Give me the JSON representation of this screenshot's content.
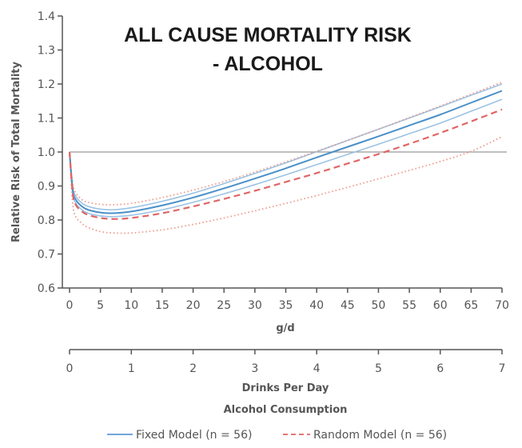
{
  "chart_data": {
    "type": "line",
    "title": "ALL CAUSE MORTALITY RISK",
    "subtitle": "- ALCOHOL",
    "xlabel": "g/d",
    "x2label": "Drinks Per Day",
    "x_caption": "Alcohol Consumption",
    "ylabel": "Relative Risk of Total Mortality",
    "xlim": [
      0,
      70
    ],
    "ylim": [
      0.6,
      1.4
    ],
    "x_ticks": [
      0,
      5,
      10,
      15,
      20,
      25,
      30,
      35,
      40,
      45,
      50,
      55,
      60,
      65,
      70
    ],
    "x2_ticks": [
      0,
      1,
      2,
      3,
      4,
      5,
      6,
      7
    ],
    "y_ticks": [
      "0.6",
      "0.7",
      "0.8",
      "0.9",
      "1.0",
      "1.1",
      "1.2",
      "1.3",
      "1.4"
    ],
    "reference_line": 1.0,
    "legend": {
      "placement": "bottom",
      "entries": [
        {
          "label": "Fixed Model (n = 56)",
          "style": "solid",
          "color": "#5b9bd5"
        },
        {
          "label": "Random Model (n = 56)",
          "style": "dashed",
          "color": "#e06666"
        }
      ]
    },
    "x": [
      0,
      0.5,
      1,
      2,
      3,
      5,
      7,
      10,
      15,
      20,
      25,
      30,
      35,
      40,
      45,
      50,
      55,
      60,
      65,
      70
    ],
    "series": [
      {
        "name": "Fixed Model",
        "role": "estimate",
        "color": "#4a90c8",
        "style": "solid",
        "values": [
          1.0,
          0.89,
          0.86,
          0.84,
          0.83,
          0.822,
          0.82,
          0.825,
          0.843,
          0.866,
          0.893,
          0.922,
          0.952,
          0.984,
          1.015,
          1.046,
          1.078,
          1.11,
          1.145,
          1.18
        ]
      },
      {
        "name": "Fixed Model upper CI",
        "role": "ci",
        "color": "#9cc3e4",
        "style": "solid",
        "values": [
          1.0,
          0.9,
          0.87,
          0.85,
          0.84,
          0.832,
          0.83,
          0.836,
          0.855,
          0.879,
          0.907,
          0.937,
          0.968,
          1.001,
          1.034,
          1.067,
          1.1,
          1.133,
          1.167,
          1.2
        ]
      },
      {
        "name": "Fixed Model lower CI",
        "role": "ci",
        "color": "#9cc3e4",
        "style": "solid",
        "values": [
          1.0,
          0.88,
          0.85,
          0.83,
          0.82,
          0.812,
          0.81,
          0.814,
          0.83,
          0.852,
          0.877,
          0.904,
          0.933,
          0.963,
          0.993,
          1.023,
          1.054,
          1.085,
          1.12,
          1.155
        ]
      },
      {
        "name": "Random Model",
        "role": "estimate",
        "color": "#e06666",
        "style": "dashed",
        "values": [
          1.0,
          0.88,
          0.845,
          0.825,
          0.815,
          0.806,
          0.803,
          0.806,
          0.82,
          0.84,
          0.862,
          0.886,
          0.912,
          0.938,
          0.966,
          0.994,
          1.024,
          1.056,
          1.09,
          1.125
        ]
      },
      {
        "name": "Random Model upper CI",
        "role": "ci",
        "color": "#ec9a8a",
        "style": "dotted",
        "values": [
          1.0,
          0.91,
          0.88,
          0.86,
          0.852,
          0.846,
          0.845,
          0.849,
          0.866,
          0.888,
          0.913,
          0.941,
          0.971,
          1.002,
          1.034,
          1.067,
          1.101,
          1.135,
          1.17,
          1.205
        ]
      },
      {
        "name": "Random Model lower CI",
        "role": "ci",
        "color": "#ec9a8a",
        "style": "dotted",
        "values": [
          1.0,
          0.85,
          0.81,
          0.79,
          0.778,
          0.766,
          0.762,
          0.762,
          0.771,
          0.787,
          0.806,
          0.827,
          0.849,
          0.872,
          0.896,
          0.921,
          0.946,
          0.972,
          1.002,
          1.045
        ]
      }
    ]
  }
}
